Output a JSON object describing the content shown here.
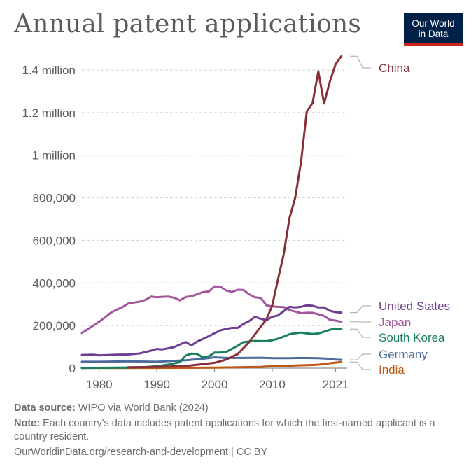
{
  "header": {
    "title": "Annual patent applications",
    "logo_line1": "Our World",
    "logo_line2": "in Data"
  },
  "footer": {
    "source_label": "Data source:",
    "source_text": "WIPO via World Bank (2024)",
    "note_label": "Note:",
    "note_text": "Each country's data includes patent applications for which the first-named applicant is a country resident.",
    "link_text": "OurWorldinData.org/research-and-development",
    "license_text": "| CC BY"
  },
  "chart_data": {
    "type": "line",
    "title": "Annual patent applications",
    "xlim": [
      1977,
      2023
    ],
    "ylim": [
      0,
      1400000
    ],
    "y_ticks": [
      0,
      200000,
      400000,
      600000,
      800000,
      1000000,
      1200000,
      1400000
    ],
    "y_tick_labels": [
      "0",
      "200,000",
      "400,000",
      "600,000",
      "800,000",
      "1 million",
      "1.2 million",
      "1.4 million"
    ],
    "x_ticks": [
      1980,
      1990,
      2000,
      2010,
      2021
    ],
    "x_tick_labels": [
      "1980",
      "1990",
      "2000",
      "2010",
      "2021"
    ],
    "grid": "horizontal-dashed",
    "legend": "right-end-labels",
    "series": [
      {
        "name": "China",
        "color": "#883039",
        "x": [
          1985,
          1990,
          1995,
          2000,
          2002,
          2004,
          2006,
          2008,
          2009,
          2010,
          2011,
          2012,
          2013,
          2014,
          2015,
          2016,
          2017,
          2018,
          2019,
          2020,
          2021,
          2022
        ],
        "y": [
          4000,
          6000,
          10000,
          25000,
          40000,
          66000,
          122000,
          194000,
          229000,
          293000,
          416000,
          535000,
          705000,
          801000,
          968000,
          1205000,
          1245000,
          1393000,
          1243000,
          1345000,
          1427000,
          1465000
        ]
      },
      {
        "name": "United States",
        "color": "#6d3e91",
        "x": [
          1977,
          1979,
          1980,
          1983,
          1985,
          1987,
          1989,
          1990,
          1991,
          1993,
          1995,
          1996,
          1997,
          1999,
          2000,
          2001,
          2002,
          2003,
          2004,
          2005,
          2006,
          2007,
          2008,
          2009,
          2010,
          2011,
          2012,
          2013,
          2014,
          2015,
          2016,
          2017,
          2018,
          2019,
          2020,
          2021,
          2022
        ],
        "y": [
          62000,
          63000,
          60000,
          63000,
          64000,
          69000,
          82000,
          90000,
          88000,
          99000,
          123000,
          107000,
          125000,
          150000,
          164000,
          177000,
          184000,
          189000,
          189000,
          207000,
          221000,
          241000,
          232000,
          225000,
          241000,
          247000,
          268000,
          288000,
          285000,
          288000,
          295000,
          293000,
          285000,
          285000,
          269000,
          263000,
          261000
        ]
      },
      {
        "name": "Japan",
        "color": "#a2559c",
        "x": [
          1977,
          1979,
          1980,
          1981,
          1982,
          1983,
          1984,
          1985,
          1986,
          1987,
          1988,
          1989,
          1990,
          1991,
          1992,
          1993,
          1994,
          1995,
          1996,
          1997,
          1998,
          1999,
          2000,
          2001,
          2002,
          2003,
          2004,
          2005,
          2006,
          2007,
          2008,
          2009,
          2010,
          2011,
          2012,
          2013,
          2014,
          2015,
          2016,
          2017,
          2018,
          2019,
          2020,
          2021,
          2022
        ],
        "y": [
          165000,
          200000,
          218000,
          238000,
          260000,
          274000,
          286000,
          303000,
          308000,
          312000,
          320000,
          336000,
          333000,
          335000,
          336000,
          331000,
          318000,
          334000,
          338000,
          347000,
          357000,
          360000,
          384000,
          383000,
          365000,
          358000,
          368000,
          367000,
          347000,
          333000,
          330000,
          295000,
          290000,
          288000,
          287000,
          272000,
          266000,
          258000,
          260000,
          260000,
          253000,
          245000,
          227000,
          223000,
          218000
        ]
      },
      {
        "name": "South Korea",
        "color": "#18805b",
        "x": [
          1977,
          1980,
          1985,
          1988,
          1990,
          1992,
          1994,
          1995,
          1996,
          1997,
          1998,
          1999,
          2000,
          2001,
          2002,
          2003,
          2004,
          2005,
          2006,
          2007,
          2008,
          2009,
          2010,
          2011,
          2012,
          2013,
          2014,
          2015,
          2016,
          2017,
          2018,
          2019,
          2020,
          2021,
          2022
        ],
        "y": [
          1000,
          1500,
          2800,
          5000,
          9000,
          17000,
          28000,
          59000,
          68000,
          67000,
          50000,
          56000,
          73000,
          73000,
          76000,
          90000,
          105000,
          122000,
          125000,
          128000,
          127000,
          127000,
          131000,
          138000,
          148000,
          159000,
          164000,
          167000,
          163000,
          160000,
          163000,
          171000,
          180000,
          186000,
          183000
        ]
      },
      {
        "name": "Germany",
        "color": "#4c6a9c",
        "x": [
          1977,
          1980,
          1985,
          1990,
          1995,
          1998,
          2000,
          2002,
          2005,
          2008,
          2010,
          2013,
          2015,
          2018,
          2020,
          2021,
          2022
        ],
        "y": [
          30000,
          30000,
          32000,
          30000,
          37000,
          44000,
          51000,
          48000,
          48000,
          49000,
          47000,
          47000,
          48000,
          47000,
          44000,
          40000,
          39000
        ]
      },
      {
        "name": "India",
        "color": "#be5915",
        "x": [
          1977,
          1980,
          1985,
          1990,
          1995,
          2000,
          2005,
          2008,
          2010,
          2012,
          2014,
          2016,
          2018,
          2020,
          2021,
          2022
        ],
        "y": [
          1200,
          1200,
          1000,
          1200,
          1500,
          2200,
          4500,
          6000,
          8800,
          9500,
          12000,
          14000,
          16000,
          23000,
          26000,
          29000
        ]
      }
    ],
    "end_labels": [
      {
        "series": "China",
        "text": "China",
        "color": "#883039"
      },
      {
        "series": "United States",
        "text": "United States",
        "color": "#6d3e91"
      },
      {
        "series": "Japan",
        "text": "Japan",
        "color": "#a2559c"
      },
      {
        "series": "South Korea",
        "text": "South Korea",
        "color": "#18805b"
      },
      {
        "series": "Germany",
        "text": "Germany",
        "color": "#4c6a9c"
      },
      {
        "series": "India",
        "text": "India",
        "color": "#be5915"
      }
    ]
  }
}
